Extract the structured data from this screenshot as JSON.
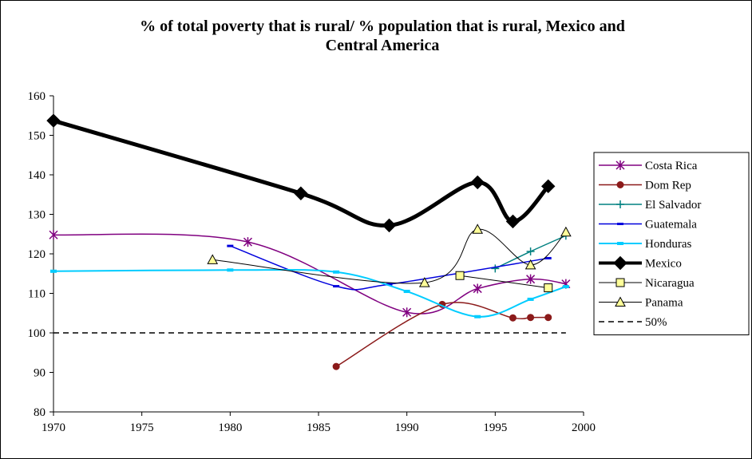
{
  "chart_data": {
    "type": "line",
    "title": "% of total poverty that is rural/ % population that is rural, Mexico and Central America",
    "title_lines": [
      "% of total poverty that is rural/ % population that is rural, Mexico and",
      "Central America"
    ],
    "xlabel": "",
    "ylabel": "",
    "xlim": [
      1970,
      2000
    ],
    "ylim": [
      80,
      160
    ],
    "x_ticks": [
      "1970",
      "1975",
      "1980",
      "1985",
      "1990",
      "1995",
      "2000"
    ],
    "y_ticks": [
      "80",
      "90",
      "100",
      "110",
      "120",
      "130",
      "140",
      "150",
      "160"
    ],
    "grid": false,
    "legend_position": "right",
    "series": [
      {
        "name": "Costa Rica",
        "color": "#800080",
        "marker": "star",
        "width": 1.5,
        "points": [
          [
            1970,
            124.8
          ],
          [
            1981,
            123
          ],
          [
            1990,
            105.2
          ],
          [
            1994,
            111.2
          ],
          [
            1997,
            113.6
          ],
          [
            1999,
            112.4
          ]
        ]
      },
      {
        "name": "Dom Rep",
        "color": "#8b1a1a",
        "marker": "circle",
        "width": 1.5,
        "points": [
          [
            1986,
            91.5
          ],
          [
            1992,
            107.2
          ],
          [
            1996,
            103.8
          ],
          [
            1997,
            103.9
          ],
          [
            1998,
            103.9
          ]
        ]
      },
      {
        "name": "El Salvador",
        "color": "#008080",
        "marker": "plus",
        "width": 1.5,
        "points": [
          [
            1995,
            116.3
          ],
          [
            1997,
            120.6
          ],
          [
            1999,
            124.6
          ]
        ]
      },
      {
        "name": "Guatemala",
        "color": "#0000dd",
        "marker": "dash",
        "width": 1.5,
        "points": [
          [
            1980,
            122
          ],
          [
            1986,
            111.8
          ],
          [
            1989,
            112.3
          ],
          [
            1998,
            118.9
          ]
        ]
      },
      {
        "name": "Honduras",
        "color": "#00ccff",
        "marker": "square-small",
        "width": 2,
        "points": [
          [
            1970,
            115.6
          ],
          [
            1980,
            115.9
          ],
          [
            1986,
            115.4
          ],
          [
            1990,
            110.5
          ],
          [
            1994,
            104.1
          ],
          [
            1997,
            108.5
          ],
          [
            1999,
            111.7
          ]
        ]
      },
      {
        "name": "Mexico",
        "color": "#000000",
        "marker": "diamond",
        "width": 5,
        "points": [
          [
            1970,
            153.7
          ],
          [
            1984,
            135.3
          ],
          [
            1989,
            127.2
          ],
          [
            1994,
            138.1
          ],
          [
            1996,
            128.2
          ],
          [
            1998,
            137.1
          ]
        ]
      },
      {
        "name": "Nicaragua",
        "color": "#000000",
        "marker": "square-open",
        "width": 1,
        "points": [
          [
            1993,
            114.5
          ],
          [
            1998,
            111.4
          ]
        ]
      },
      {
        "name": "Panama",
        "color": "#000000",
        "marker": "triangle-open",
        "width": 1,
        "points": [
          [
            1979,
            118.5
          ],
          [
            1991,
            112.7
          ],
          [
            1994,
            126.2
          ],
          [
            1997,
            117.2
          ],
          [
            1999,
            125.5
          ]
        ]
      },
      {
        "name": "50%",
        "color": "#000000",
        "marker": "none",
        "width": 1.5,
        "dashed": true,
        "points": [
          [
            1970,
            100
          ],
          [
            1999,
            100
          ]
        ]
      }
    ]
  }
}
